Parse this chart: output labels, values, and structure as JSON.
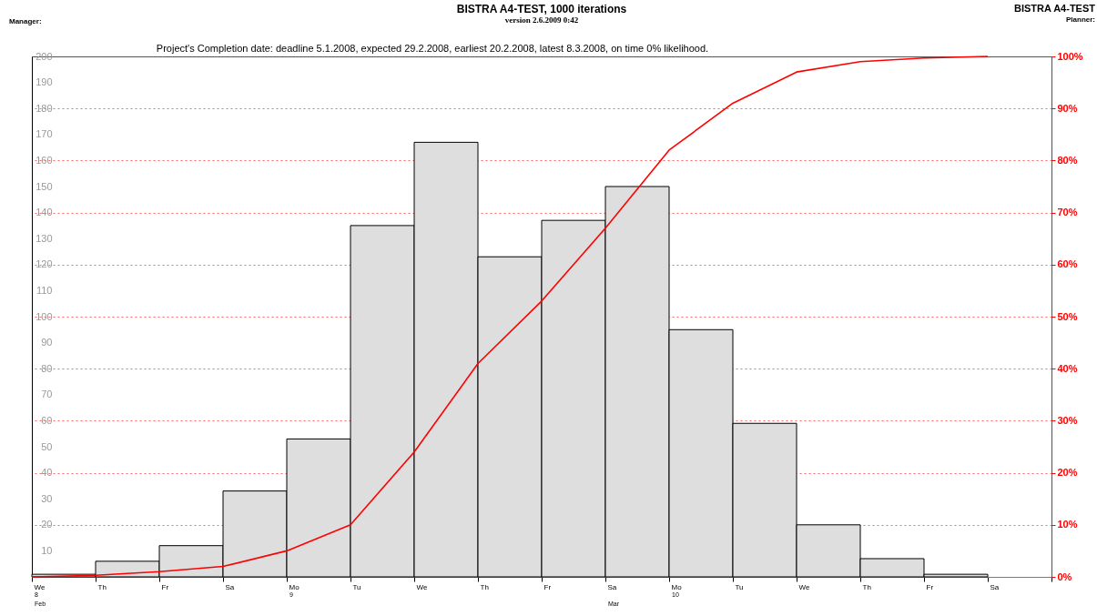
{
  "chart_data": {
    "type": "bar",
    "title": "BISTRA A4-TEST, 1000 iterations",
    "subtitle": "version 2.6.2009 0:42",
    "categories": [
      "We",
      "Th",
      "Fr",
      "Sa",
      "Mo",
      "Tu",
      "We",
      "Th",
      "Fr",
      "Sa",
      "Mo",
      "Tu",
      "We",
      "Th",
      "Fr",
      "Sa"
    ],
    "series": [
      {
        "color": "#dedede",
        "values": [
          1,
          6,
          12,
          33,
          53,
          135,
          167,
          123,
          137,
          150,
          95,
          59,
          20,
          7,
          1,
          null
        ]
      },
      {
        "type": "line",
        "axis": "y2",
        "color": "#ff0000",
        "values": [
          0,
          0.3,
          1,
          2,
          5,
          10,
          24,
          41,
          53,
          67,
          82,
          91,
          97,
          99,
          99.7,
          100
        ]
      }
    ],
    "ylim": [
      0,
      200
    ],
    "yticks": [
      10,
      20,
      30,
      40,
      50,
      60,
      70,
      80,
      90,
      100,
      110,
      120,
      130,
      140,
      150,
      160,
      170,
      180,
      190,
      200
    ],
    "y2lim": [
      0,
      100
    ],
    "y2ticks": [
      {
        "value": 0,
        "label": "0%"
      },
      {
        "value": 10,
        "label": "10%"
      },
      {
        "value": 20,
        "label": "20%"
      },
      {
        "value": 30,
        "label": "30%"
      },
      {
        "value": 40,
        "label": "40%"
      },
      {
        "value": 50,
        "label": "50%"
      },
      {
        "value": 60,
        "label": "60%"
      },
      {
        "value": 70,
        "label": "70%"
      },
      {
        "value": 80,
        "label": "80%"
      },
      {
        "value": 90,
        "label": "90%"
      },
      {
        "value": 100,
        "label": "100%"
      }
    ],
    "grid": "y2",
    "annotations": [
      "Manager:",
      "BISTRA A4-TEST",
      "Planner:",
      "Project's Completion date: deadline 5.1.2008, expected 29.2.2008, earliest 20.2.2008, latest 8.3.2008, on time 0% likelihood.",
      "8",
      "9",
      "10",
      "Feb",
      "Mar"
    ]
  }
}
